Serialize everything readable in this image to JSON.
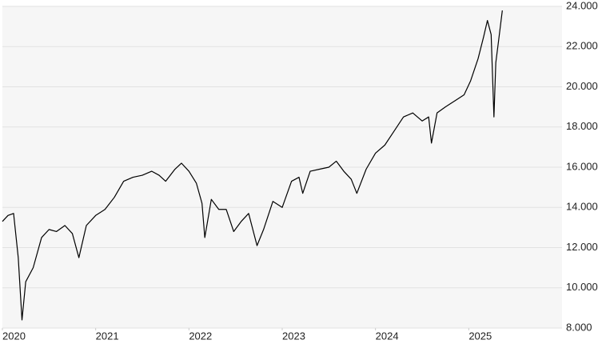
{
  "chart_data": {
    "type": "line",
    "x": [
      2020.0,
      2020.06,
      2020.12,
      2020.17,
      2020.21,
      2020.25,
      2020.33,
      2020.42,
      2020.5,
      2020.58,
      2020.67,
      2020.75,
      2020.82,
      2020.9,
      2021.0,
      2021.1,
      2021.2,
      2021.3,
      2021.4,
      2021.5,
      2021.6,
      2021.68,
      2021.75,
      2021.85,
      2021.92,
      2022.0,
      2022.08,
      2022.14,
      2022.17,
      2022.24,
      2022.32,
      2022.4,
      2022.48,
      2022.56,
      2022.64,
      2022.73,
      2022.8,
      2022.9,
      2023.0,
      2023.1,
      2023.18,
      2023.22,
      2023.3,
      2023.4,
      2023.5,
      2023.58,
      2023.66,
      2023.74,
      2023.8,
      2023.9,
      2024.0,
      2024.1,
      2024.2,
      2024.3,
      2024.4,
      2024.5,
      2024.57,
      2024.6,
      2024.66,
      2024.75,
      2024.85,
      2024.95,
      2025.02,
      2025.1,
      2025.16,
      2025.2,
      2025.24,
      2025.27,
      2025.29,
      2025.32,
      2025.36
    ],
    "values": [
      13300,
      13600,
      13700,
      11500,
      8400,
      10300,
      11000,
      12500,
      12900,
      12800,
      13100,
      12700,
      11500,
      13100,
      13600,
      13900,
      14500,
      15300,
      15500,
      15600,
      15800,
      15600,
      15300,
      15900,
      16200,
      15800,
      15200,
      14200,
      12500,
      14400,
      13900,
      13900,
      12800,
      13300,
      13700,
      12100,
      12900,
      14300,
      14000,
      15300,
      15500,
      14700,
      15800,
      15900,
      16000,
      16300,
      15800,
      15400,
      14700,
      15900,
      16700,
      17100,
      17800,
      18500,
      18700,
      18300,
      18500,
      17200,
      18700,
      19000,
      19300,
      19600,
      20300,
      21400,
      22500,
      23300,
      22600,
      18500,
      21200,
      22300,
      23800
    ],
    "color": "#000000",
    "xlim": [
      2020,
      2026
    ],
    "xticks": [
      2020,
      2021,
      2022,
      2023,
      2024,
      2025
    ],
    "ylim": [
      8000,
      24000
    ],
    "yticks": [
      {
        "value": 8000,
        "label": "8.000"
      },
      {
        "value": 10000,
        "label": "10.000"
      },
      {
        "value": 12000,
        "label": "12.000"
      },
      {
        "value": 14000,
        "label": "14.000"
      },
      {
        "value": 16000,
        "label": "16.000"
      },
      {
        "value": 18000,
        "label": "18.000"
      },
      {
        "value": 20000,
        "label": "20.000"
      },
      {
        "value": 22000,
        "label": "22.000"
      },
      {
        "value": 24000,
        "label": "24.000"
      }
    ],
    "grid": true
  }
}
